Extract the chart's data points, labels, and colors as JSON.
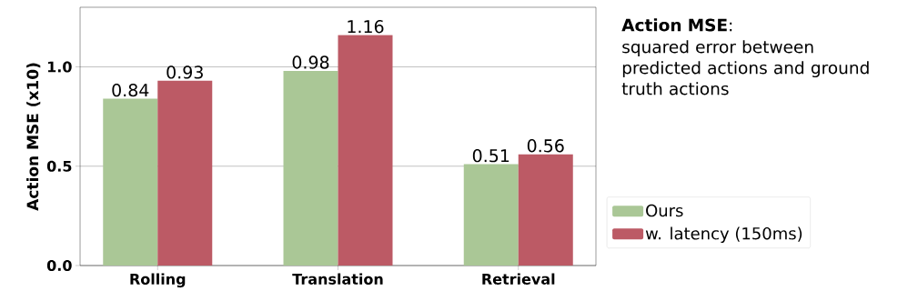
{
  "chart_data": {
    "type": "bar",
    "ylabel": "Action MSE (x10)",
    "categories": [
      "Rolling",
      "Translation",
      "Retrieval"
    ],
    "series": [
      {
        "name": "Ours",
        "color": "#aac796",
        "values": [
          0.84,
          0.98,
          0.51
        ]
      },
      {
        "name": "w. latency (150ms)",
        "color": "#bc5a65",
        "values": [
          0.93,
          1.16,
          0.56
        ]
      }
    ],
    "ylim": [
      0,
      1.3
    ],
    "yticks": [
      {
        "value": 0,
        "label": "0.0"
      },
      {
        "value": 0.5,
        "label": "0.5"
      },
      {
        "value": 1.0,
        "label": "1.0"
      }
    ],
    "grid": "y",
    "legend": "right",
    "data_labels": true,
    "annotations": [
      "**Action MSE**:",
      "squared error between predicted actions and ground truth actions"
    ]
  }
}
